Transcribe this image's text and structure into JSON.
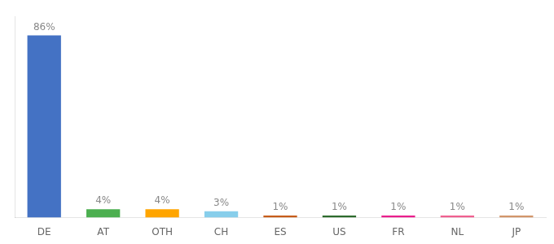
{
  "chart_data": {
    "type": "bar",
    "categories": [
      "DE",
      "AT",
      "OTH",
      "CH",
      "ES",
      "US",
      "FR",
      "NL",
      "JP"
    ],
    "values": [
      86,
      4,
      4,
      3,
      1,
      1,
      1,
      1,
      1
    ],
    "value_labels": [
      "86%",
      "4%",
      "4%",
      "3%",
      "1%",
      "1%",
      "1%",
      "1%",
      "1%"
    ],
    "colors": [
      "#4472C4",
      "#4CAF50",
      "#FFA500",
      "#87CEEB",
      "#C65C1A",
      "#2D6B2D",
      "#E91E8C",
      "#F06090",
      "#D2956A"
    ],
    "ylim": [
      0,
      95
    ],
    "grid": false,
    "data_labels": true,
    "tick_labels": "x"
  }
}
